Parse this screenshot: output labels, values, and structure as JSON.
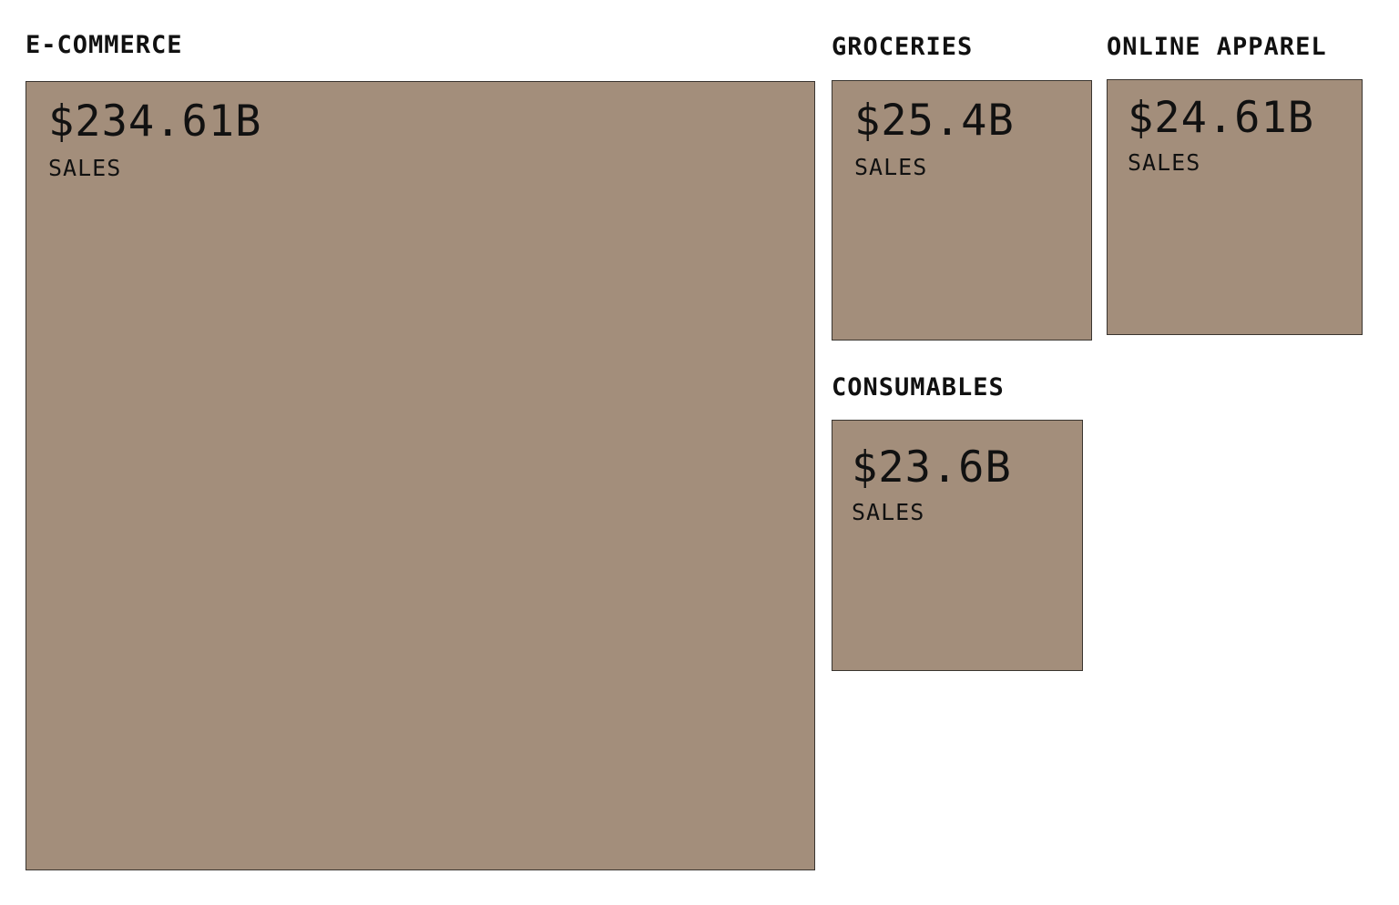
{
  "chart_data": {
    "type": "treemap",
    "tile_color": "#a38e7b",
    "border_color": "#3a3530",
    "categories": [
      "E-COMMERCE",
      "GROCERIES",
      "ONLINE APPAREL",
      "CONSUMABLES"
    ],
    "values": [
      234.61,
      25.4,
      24.61,
      23.6
    ],
    "items": [
      {
        "label": "E-COMMERCE",
        "value": 234.61,
        "value_text": "$234.61B",
        "metric": "SALES"
      },
      {
        "label": "GROCERIES",
        "value": 25.4,
        "value_text": "$25.4B",
        "metric": "SALES"
      },
      {
        "label": "ONLINE APPAREL",
        "value": 24.61,
        "value_text": "$24.61B",
        "metric": "SALES"
      },
      {
        "label": "CONSUMABLES",
        "value": 23.6,
        "value_text": "$23.6B",
        "metric": "SALES"
      }
    ]
  }
}
